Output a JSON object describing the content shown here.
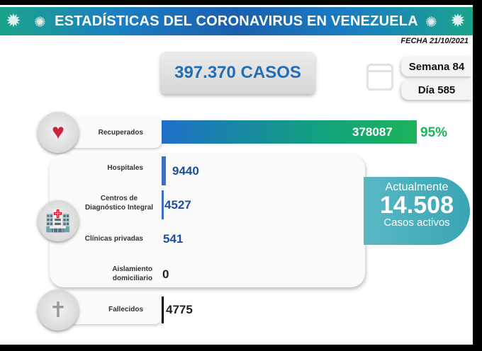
{
  "header": {
    "title": "ESTADÍSTICAS DEL CORONAVIRUS EN VENEZUELA",
    "date": "FECHA 21/10/2021"
  },
  "total_cases": "397.370 CASOS",
  "week": "Semana 84",
  "day": "Día 585",
  "recovered": {
    "label": "Recuperados",
    "value": "378087",
    "percent": "95%",
    "fraction": 0.95
  },
  "active_breakdown": [
    {
      "label": "Hospitales",
      "value": "9440"
    },
    {
      "label": "Centros de Diagnóstico Integral",
      "value": "4527"
    },
    {
      "label": "Clínicas privadas",
      "value": "541"
    },
    {
      "label": "Aislamiento domiciliario",
      "value": "0"
    }
  ],
  "deaths": {
    "label": "Fallecidos",
    "value": "4775"
  },
  "active": {
    "title": "Actualmente",
    "value": "14.508",
    "subtitle": "Casos activos"
  },
  "colors": {
    "blue": "#1f6fb8",
    "green": "#1db35a",
    "teal": "#3aa4b3"
  }
}
